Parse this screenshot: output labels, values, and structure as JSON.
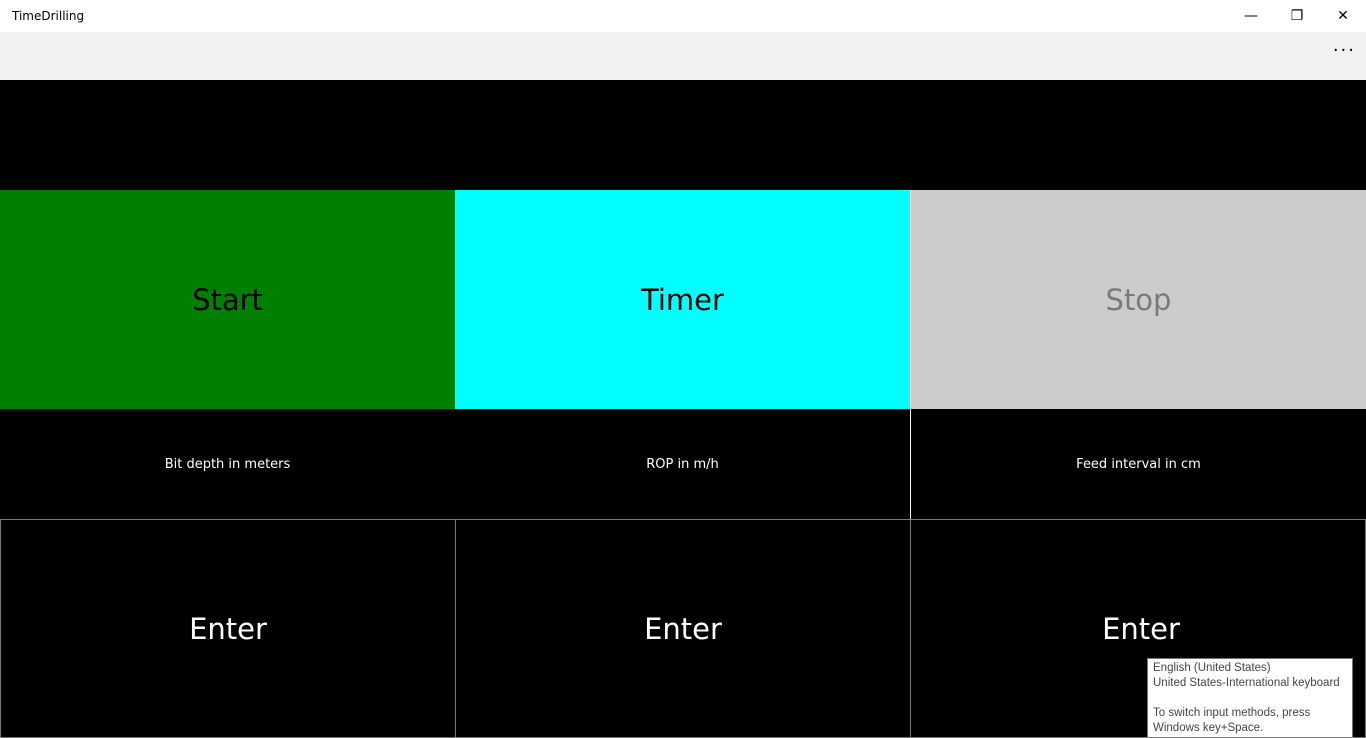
{
  "window": {
    "title": "TimeDrilling",
    "minimize_icon": "minimize-icon",
    "restore_icon": "restore-icon",
    "close_icon": "close-icon"
  },
  "command_bar": {
    "more_label": "···"
  },
  "buttons": {
    "start": "Start",
    "timer": "Timer",
    "stop": "Stop"
  },
  "labels": {
    "bit_depth": "Bit depth in meters",
    "rop": "ROP in m/h",
    "feed_interval": "Feed interval in cm"
  },
  "enter": [
    "Enter",
    "Enter",
    "Enter"
  ],
  "colors": {
    "start": "#008000",
    "timer": "#00ffff",
    "stop": "#cccccc",
    "stop_text": "#7a7a7a"
  },
  "tooltip": {
    "line1": "English (United States)",
    "line2": "United States-International keyboard",
    "line3": "To switch input methods, press",
    "line4": "Windows key+Space."
  }
}
